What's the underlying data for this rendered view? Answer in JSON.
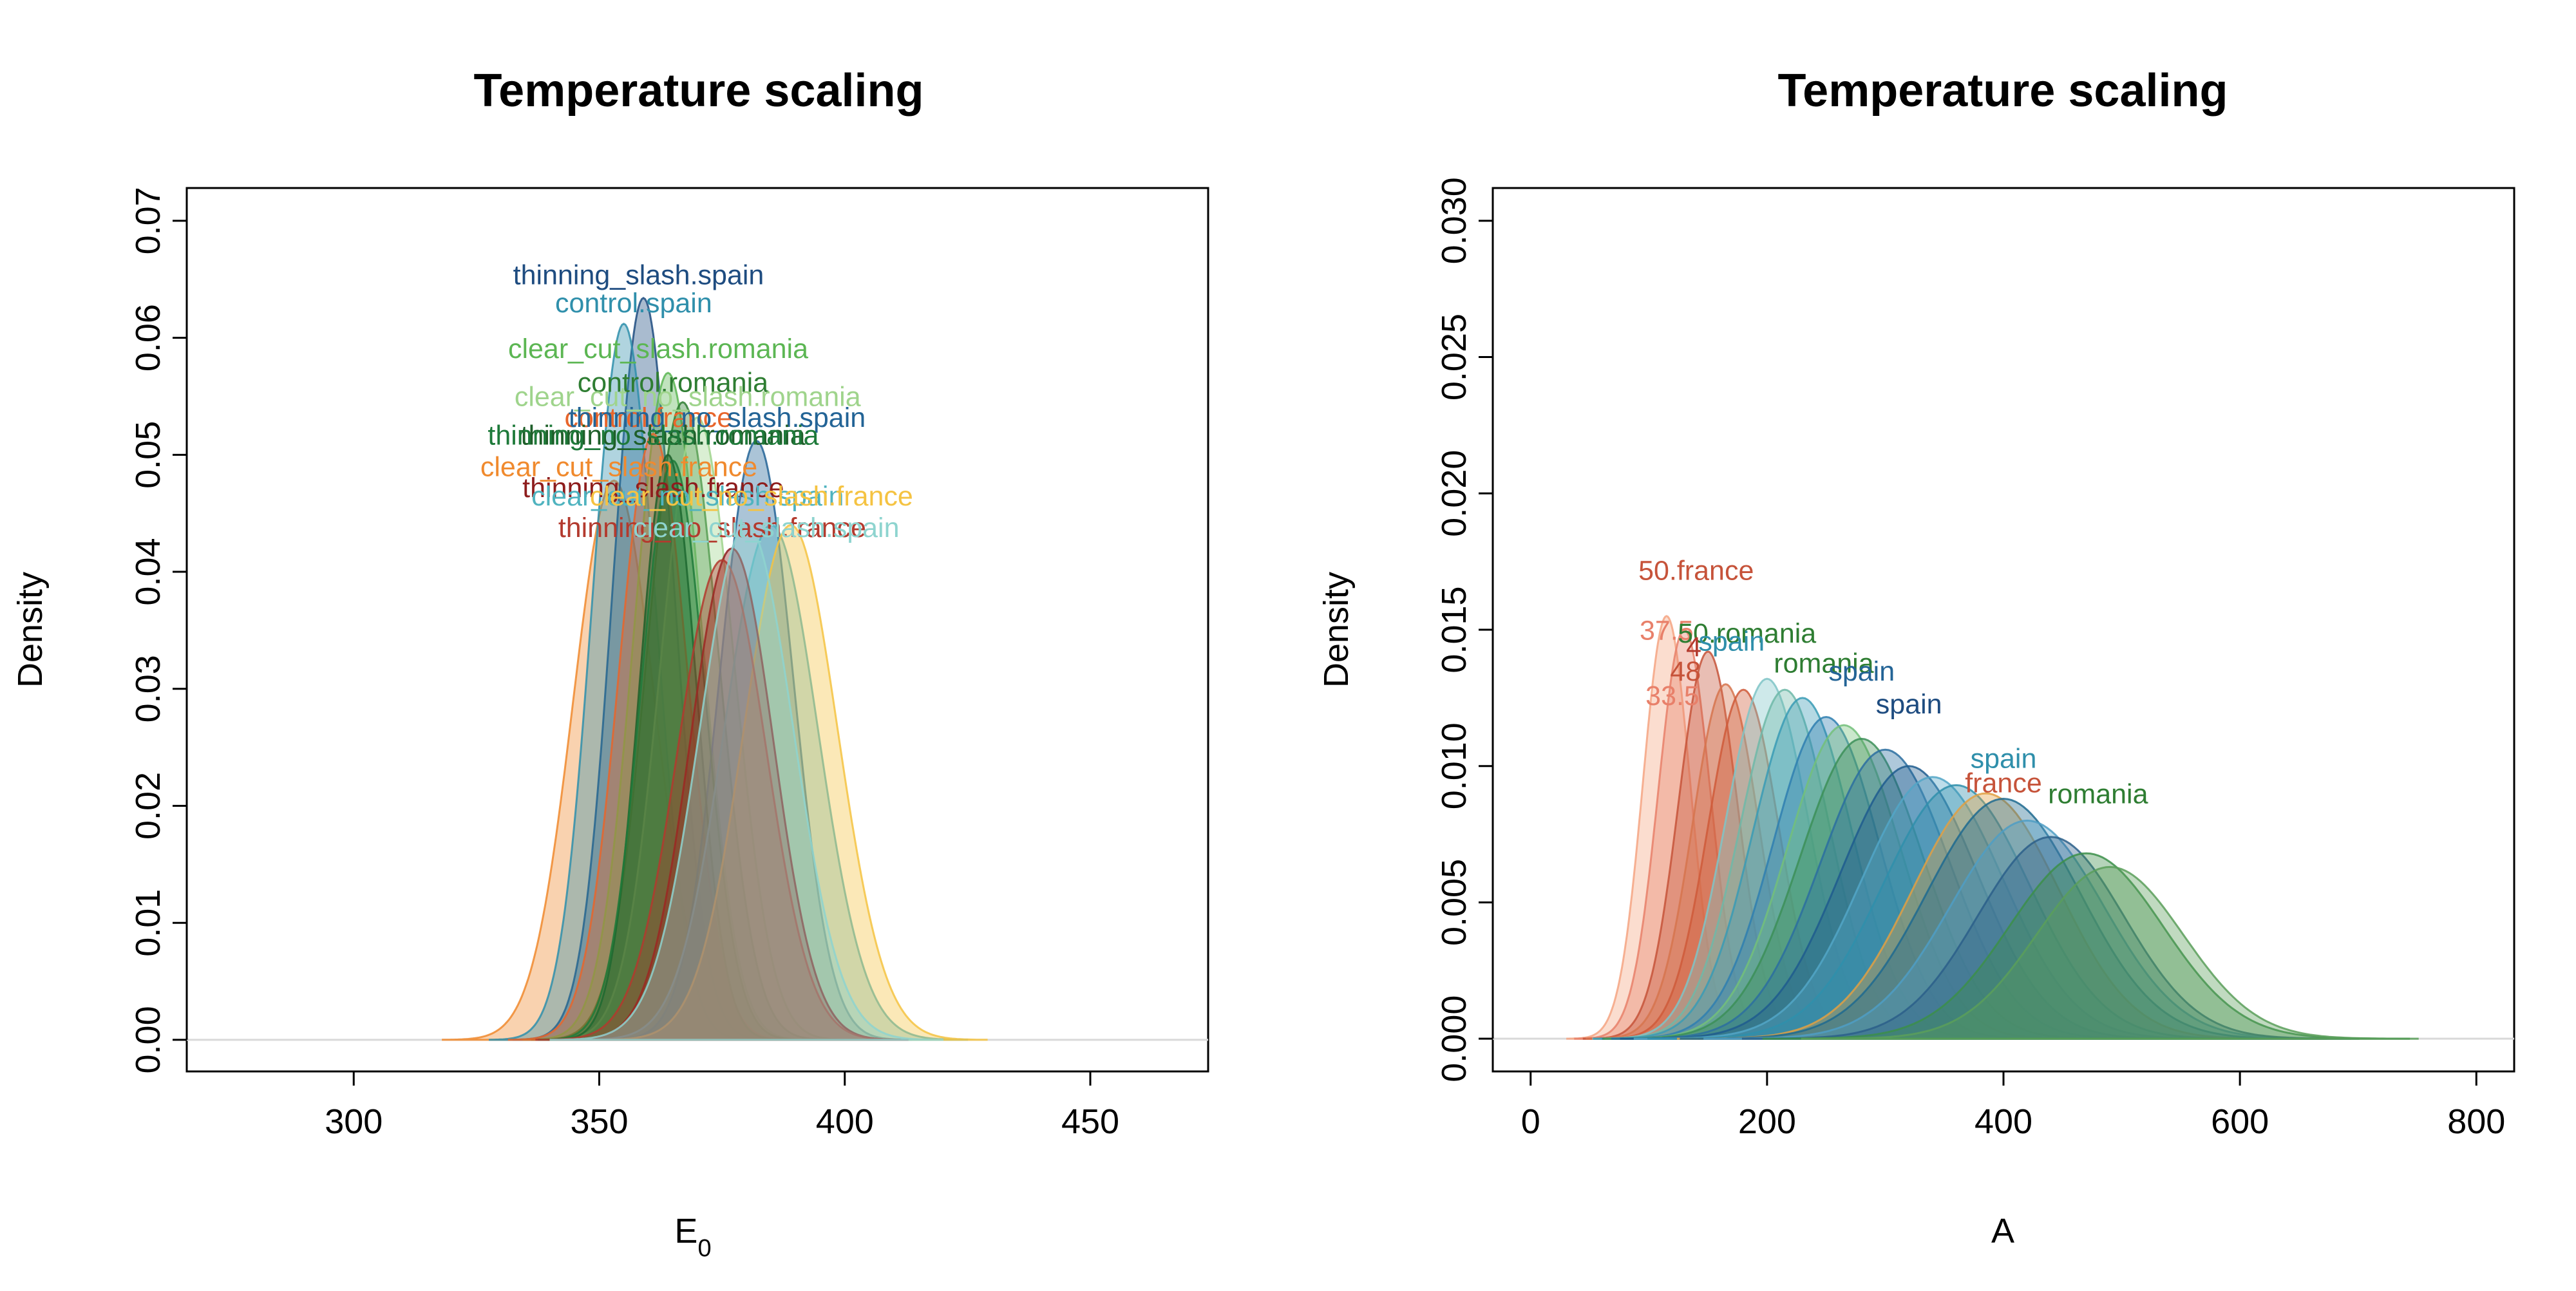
{
  "chart_data": [
    {
      "type": "area",
      "title": "Temperature scaling",
      "xlabel": "E",
      "xlabel_sub": "0",
      "ylabel": "Density",
      "xlim": [
        266,
        474
      ],
      "ylim": [
        -0.0027,
        0.0728
      ],
      "xticks": [
        300,
        350,
        400,
        450
      ],
      "yticks": [
        0.0,
        0.01,
        0.02,
        0.03,
        0.04,
        0.05,
        0.06,
        0.07
      ],
      "ytick_format": 2,
      "curves": [
        {
          "name": "clear_cut_slash.france",
          "mean": 353,
          "sd": 8.3,
          "peak": 0.0478,
          "color": "#f08a2e"
        },
        {
          "name": "thinning_slash.spain",
          "mean": 359,
          "sd": 6.3,
          "peak": 0.0634,
          "color": "#1e4c80"
        },
        {
          "name": "control.spain",
          "mean": 355,
          "sd": 6.5,
          "peak": 0.0612,
          "color": "#2f8fab"
        },
        {
          "name": "clear_cut_slash.romania",
          "mean": 364,
          "sd": 7.0,
          "peak": 0.057,
          "color": "#5cb653"
        },
        {
          "name": "control.romania",
          "mean": 367,
          "sd": 7.3,
          "peak": 0.0545,
          "color": "#2e7d32"
        },
        {
          "name": "clear_cut_no_slash.romania",
          "mean": 370,
          "sd": 7.5,
          "peak": 0.0532,
          "color": "#9fd48c"
        },
        {
          "name": "control.france",
          "mean": 361,
          "sd": 7.0,
          "peak": 0.0518,
          "color": "#e8652b"
        },
        {
          "name": "thinning_no_slash.spain",
          "mean": 382,
          "sd": 7.5,
          "peak": 0.0512,
          "color": "#236496"
        },
        {
          "name": "thinning_slash.romania",
          "mean": 364,
          "sd": 5.8,
          "peak": 0.05,
          "color": "#1f5f2a"
        },
        {
          "name": "thinning_no_slash.romania",
          "mean": 365,
          "sd": 6.5,
          "peak": 0.0495,
          "color": "#1e7a3a"
        },
        {
          "name": "clear_cut_no_slash.spain",
          "mean": 385,
          "sd": 9.5,
          "peak": 0.044,
          "color": "#4fb3bf"
        },
        {
          "name": "clear_cut_no_slash.france",
          "mean": 389,
          "sd": 9.5,
          "peak": 0.044,
          "color": "#f5c342"
        },
        {
          "name": "thinning_slash.france",
          "mean": 377,
          "sd": 8.5,
          "peak": 0.042,
          "color": "#8e1d1d"
        },
        {
          "name": "thinning_no_slash.france",
          "mean": 375,
          "sd": 9.0,
          "peak": 0.041,
          "color": "#b33a2e"
        },
        {
          "name": "clear_cut_slash.spain",
          "mean": 380,
          "sd": 9.5,
          "peak": 0.044,
          "color": "#8ed4cf"
        }
      ],
      "annotations": [
        {
          "text": "thinning_slash.spain",
          "x": 358,
          "y": 0.0652,
          "color": "#1e4c80"
        },
        {
          "text": "control.spain",
          "x": 357,
          "y": 0.0628,
          "color": "#2f8fab"
        },
        {
          "text": "clear_cut_slash.romania",
          "x": 362,
          "y": 0.0589,
          "color": "#5cb653"
        },
        {
          "text": "control.romania",
          "x": 365,
          "y": 0.056,
          "color": "#2e7d32"
        },
        {
          "text": "clear_cut_no_slash.romania",
          "x": 368,
          "y": 0.0548,
          "color": "#9fd48c"
        },
        {
          "text": "control.france",
          "x": 360,
          "y": 0.053,
          "color": "#e8652b"
        },
        {
          "text": "thinning_no_slash.spain",
          "x": 374,
          "y": 0.053,
          "color": "#236496"
        },
        {
          "text": "thinning_slash.romania",
          "x": 363,
          "y": 0.0515,
          "color": "#1f5f2a"
        },
        {
          "text": "thinning_no_slash.romania",
          "x": 361,
          "y": 0.0515,
          "color": "#1e7a3a"
        },
        {
          "text": "clear_cut_slash.france",
          "x": 354,
          "y": 0.0488,
          "color": "#f08a2e"
        },
        {
          "text": "thinning_slash.france",
          "x": 361,
          "y": 0.047,
          "color": "#8e1d1d"
        },
        {
          "text": "clear_cut_no_slash.spain",
          "x": 368,
          "y": 0.0463,
          "color": "#4fb3bf"
        },
        {
          "text": "clear_cut_no_slash.france",
          "x": 381,
          "y": 0.0463,
          "color": "#f5c342"
        },
        {
          "text": "thinning_no_slash.france",
          "x": 373,
          "y": 0.0436,
          "color": "#b33a2e"
        },
        {
          "text": "clear_cut_slash.spain",
          "x": 384,
          "y": 0.0436,
          "color": "#8ed4cf"
        }
      ]
    },
    {
      "type": "area",
      "title": "Temperature scaling",
      "xlabel": "A",
      "xlabel_sub": "",
      "ylabel": "Density",
      "xlim": [
        -32,
        832
      ],
      "ylim": [
        -0.0012,
        0.0312
      ],
      "xticks": [
        0,
        200,
        400,
        600,
        800
      ],
      "yticks": [
        0.0,
        0.005,
        0.01,
        0.015,
        0.02,
        0.025,
        0.03
      ],
      "ytick_format": 3,
      "curves": [
        {
          "name": "",
          "mean": 115,
          "sd": 20,
          "peak": 0.0155,
          "color": "#f4a582"
        },
        {
          "name": "",
          "mean": 130,
          "sd": 22,
          "peak": 0.015,
          "color": "#e8806a"
        },
        {
          "name": "",
          "mean": 150,
          "sd": 25,
          "peak": 0.0142,
          "color": "#c6533a"
        },
        {
          "name": "",
          "mean": 165,
          "sd": 28,
          "peak": 0.013,
          "color": "#d6744e"
        },
        {
          "name": "",
          "mean": 180,
          "sd": 30,
          "peak": 0.0128,
          "color": "#cf5b3a"
        },
        {
          "name": "",
          "mean": 200,
          "sd": 35,
          "peak": 0.0132,
          "color": "#7fc4c7"
        },
        {
          "name": "",
          "mean": 215,
          "sd": 38,
          "peak": 0.0128,
          "color": "#6fb8a8"
        },
        {
          "name": "",
          "mean": 230,
          "sd": 42,
          "peak": 0.0125,
          "color": "#3a9bb5"
        },
        {
          "name": "",
          "mean": 250,
          "sd": 45,
          "peak": 0.0118,
          "color": "#2f7fb0"
        },
        {
          "name": "",
          "mean": 265,
          "sd": 48,
          "peak": 0.0115,
          "color": "#73c07a"
        },
        {
          "name": "",
          "mean": 280,
          "sd": 52,
          "peak": 0.011,
          "color": "#3c8f58"
        },
        {
          "name": "",
          "mean": 300,
          "sd": 55,
          "peak": 0.0106,
          "color": "#2b6fa0"
        },
        {
          "name": "",
          "mean": 320,
          "sd": 58,
          "peak": 0.01,
          "color": "#1f5c8e"
        },
        {
          "name": "",
          "mean": 340,
          "sd": 60,
          "peak": 0.0096,
          "color": "#52a6c7"
        },
        {
          "name": "",
          "mean": 360,
          "sd": 62,
          "peak": 0.0093,
          "color": "#2f8fab"
        },
        {
          "name": "",
          "mean": 385,
          "sd": 62,
          "peak": 0.009,
          "color": "#e0a043"
        },
        {
          "name": "",
          "mean": 400,
          "sd": 65,
          "peak": 0.0088,
          "color": "#1e6a8f"
        },
        {
          "name": "",
          "mean": 420,
          "sd": 65,
          "peak": 0.008,
          "color": "#4f9ec4"
        },
        {
          "name": "",
          "mean": 440,
          "sd": 62,
          "peak": 0.0074,
          "color": "#2c5f8a"
        },
        {
          "name": "",
          "mean": 470,
          "sd": 65,
          "peak": 0.0068,
          "color": "#3c8f4a"
        },
        {
          "name": "",
          "mean": 490,
          "sd": 62,
          "peak": 0.0063,
          "color": "#5a9f5a"
        }
      ],
      "annotations": [
        {
          "text": "50.france",
          "x": 140,
          "y": 0.0171,
          "color": "#c6533a"
        },
        {
          "text": "37.5",
          "x": 115,
          "y": 0.0149,
          "color": "#e8806a"
        },
        {
          "text": "50.romania",
          "x": 183,
          "y": 0.0148,
          "color": "#2e7d32"
        },
        {
          "text": "4",
          "x": 138,
          "y": 0.0143,
          "color": "#b33a2e"
        },
        {
          "text": "spain",
          "x": 170,
          "y": 0.0145,
          "color": "#2f8fab"
        },
        {
          "text": "romania",
          "x": 248,
          "y": 0.0137,
          "color": "#2e7d32"
        },
        {
          "text": "48",
          "x": 131,
          "y": 0.0134,
          "color": "#c6533a"
        },
        {
          "text": "spain",
          "x": 280,
          "y": 0.0134,
          "color": "#236496"
        },
        {
          "text": "33.5",
          "x": 120,
          "y": 0.0125,
          "color": "#e8806a"
        },
        {
          "text": "spain",
          "x": 320,
          "y": 0.0122,
          "color": "#1e4c80"
        },
        {
          "text": "spain",
          "x": 400,
          "y": 0.0102,
          "color": "#2f8fab"
        },
        {
          "text": "romania",
          "x": 480,
          "y": 0.0089,
          "color": "#2e7d32"
        },
        {
          "text": "france",
          "x": 400,
          "y": 0.0093,
          "color": "#c6533a"
        }
      ]
    }
  ]
}
